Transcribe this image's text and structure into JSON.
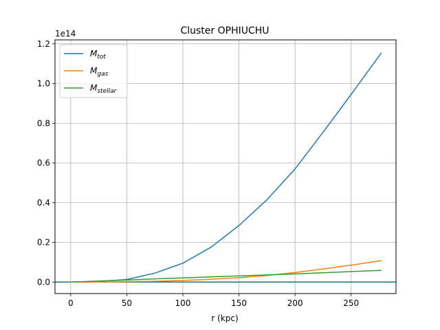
{
  "chart_data": {
    "type": "line",
    "title": "Cluster OPHIUCHU",
    "xlabel": "r (kpc)",
    "ylabel": "",
    "y_offset_label": "1e14",
    "xlim": [
      -14,
      290
    ],
    "ylim": [
      -0.058,
      1.22
    ],
    "x_ticks": [
      0,
      50,
      100,
      150,
      200,
      250
    ],
    "x_tick_labels": [
      "0",
      "50",
      "100",
      "150",
      "200",
      "250"
    ],
    "y_ticks": [
      0.0,
      0.2,
      0.4,
      0.6,
      0.8,
      1.0,
      1.2
    ],
    "y_tick_labels": [
      "0.0",
      "0.2",
      "0.4",
      "0.6",
      "0.8",
      "1.0",
      "1.2"
    ],
    "grid": true,
    "legend_position": "top-left",
    "hline": {
      "y": 0,
      "color": "#1f6f7f"
    },
    "series": [
      {
        "name_main": "M",
        "name_sub": "tot",
        "color": "#1f77b4",
        "x": [
          0,
          25,
          50,
          75,
          100,
          125,
          150,
          175,
          200,
          225,
          250,
          277
        ],
        "y": [
          0.0,
          0.003,
          0.013,
          0.045,
          0.095,
          0.175,
          0.285,
          0.415,
          0.57,
          0.755,
          0.945,
          1.155
        ]
      },
      {
        "name_main": "M",
        "name_sub": "gas",
        "color": "#ff7f0e",
        "x": [
          0,
          25,
          50,
          75,
          100,
          125,
          150,
          175,
          200,
          225,
          250,
          277
        ],
        "y": [
          0.0,
          0.0002,
          0.0015,
          0.004,
          0.008,
          0.014,
          0.022,
          0.033,
          0.048,
          0.066,
          0.085,
          0.108
        ]
      },
      {
        "name_main": "M",
        "name_sub": "stellar",
        "color": "#2ca02c",
        "x": [
          0,
          25,
          50,
          75,
          100,
          125,
          150,
          175,
          200,
          225,
          250,
          277
        ],
        "y": [
          0.0,
          0.005,
          0.01,
          0.016,
          0.021,
          0.026,
          0.031,
          0.036,
          0.041,
          0.047,
          0.053,
          0.059
        ]
      }
    ]
  }
}
